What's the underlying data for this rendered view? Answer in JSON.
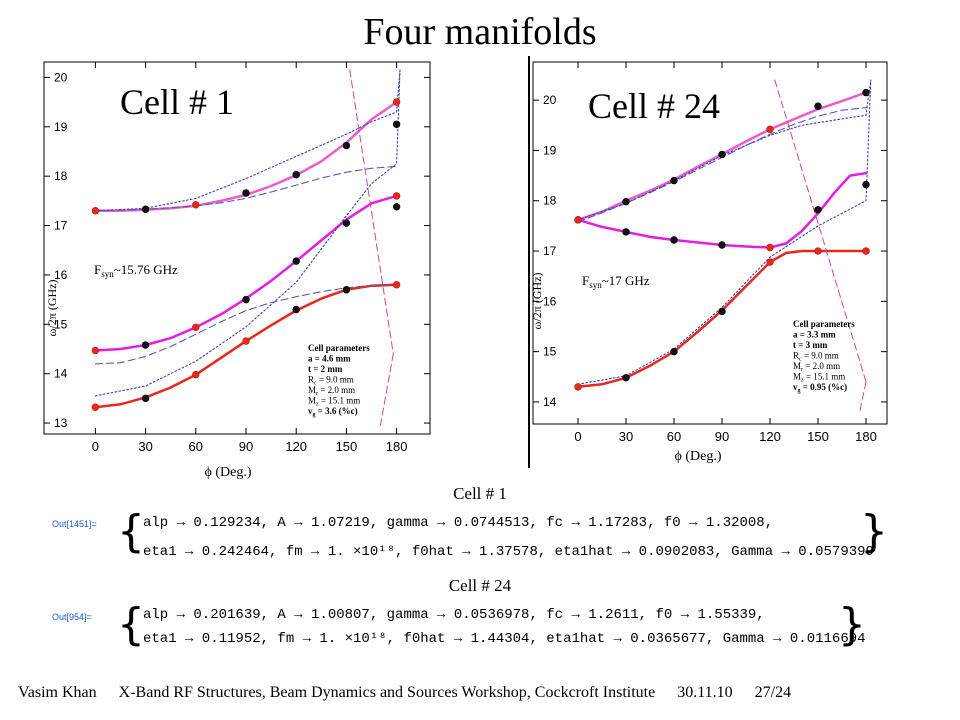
{
  "title": "Four manifolds",
  "labels": {
    "cell1_caption": "Cell # 1",
    "cell24_caption": "Cell # 24",
    "out1": "Out[1451]=",
    "out2": "Out[954]="
  },
  "fits": {
    "cell1": {
      "line1": "alp → 0.129234, A → 1.07219, gamma → 0.0744513, fc → 1.17283, f0 → 1.32008,",
      "line2": "eta1 → 0.242464, fm → 1. ×10¹⁸, f0hat → 1.37578, eta1hat → 0.0902083, Gamma → 0.0579399"
    },
    "cell24": {
      "line1": "alp → 0.201639, A → 1.00807, gamma → 0.0536978, fc → 1.2611, f0 → 1.55339,",
      "line2": "eta1 → 0.11952, fm → 1. ×10¹⁸, f0hat → 1.44304, eta1hat → 0.0365677, Gamma → 0.0116694"
    }
  },
  "footer": {
    "author": "Vasim Khan",
    "event": "X-Band RF Structures, Beam Dynamics and Sources Workshop, Cockcroft Institute",
    "date": "30.11.10",
    "page": "27/24"
  },
  "colors": {
    "red": "#e8281c",
    "magenta": "#e31ee3",
    "pink": "#ee5cc8",
    "dashed_blue": "#5a5ab4",
    "dotted_blue": "#3c3cc8",
    "light_line": "#d7428c",
    "dark_point": "#111111"
  },
  "chart_data": [
    {
      "type": "line",
      "panel_title": "Cell # 1",
      "fsyn_label": "F",
      "fsyn_sub": "syn",
      "fsyn_value": "~15.76 GHz",
      "xlabel": "ϕ (Deg.)",
      "ylabel": "ω/2π (GHz)",
      "xlim": [
        -5,
        185
      ],
      "ylim": [
        12.9,
        20.15
      ],
      "xticks": [
        0,
        30,
        60,
        90,
        120,
        150,
        180
      ],
      "yticks": [
        13,
        14,
        15,
        16,
        17,
        18,
        19,
        20
      ],
      "params": [
        "Cell parameters",
        "a = 4.6 mm",
        "t = 2 mm",
        "R",
        "c",
        " = 9.0 mm",
        "M",
        "r",
        " = 2.0 mm",
        "M",
        "z",
        " = 15.1 mm",
        "v",
        "g",
        " = 3.6 (%c)"
      ],
      "params_lines": [
        {
          "t": "Cell parameters",
          "bold": true
        },
        {
          "t": "a = 4.6 mm",
          "bold": true
        },
        {
          "t": "t = 2 mm",
          "bold": true
        },
        {
          "t": "R",
          "s": "c",
          "r": " = 9.0 mm"
        },
        {
          "t": "M",
          "s": "r",
          "r": " = 2.0 mm"
        },
        {
          "t": "M",
          "s": "z",
          "r": " = 15.1 mm"
        },
        {
          "t": "v",
          "s": "g",
          "r": " = 3.6 (%c)",
          "bold": true
        }
      ],
      "curves": [
        {
          "color": "red",
          "style": "solid",
          "width": 2.5,
          "x": [
            0,
            15,
            30,
            45,
            60,
            75,
            90,
            105,
            120,
            135,
            150,
            165,
            180
          ],
          "y": [
            13.32,
            13.38,
            13.52,
            13.72,
            13.98,
            14.32,
            14.66,
            14.98,
            15.28,
            15.52,
            15.7,
            15.78,
            15.8
          ]
        },
        {
          "color": "magenta",
          "style": "solid",
          "width": 2.5,
          "x": [
            0,
            15,
            30,
            45,
            60,
            75,
            90,
            105,
            120,
            135,
            150,
            165,
            180
          ],
          "y": [
            14.47,
            14.5,
            14.58,
            14.72,
            14.94,
            15.2,
            15.52,
            15.88,
            16.28,
            16.7,
            17.12,
            17.45,
            17.6
          ]
        },
        {
          "color": "pink",
          "style": "solid",
          "width": 2.5,
          "x": [
            0,
            15,
            30,
            45,
            60,
            75,
            90,
            105,
            120,
            135,
            150,
            165,
            180
          ],
          "y": [
            17.3,
            17.3,
            17.32,
            17.35,
            17.4,
            17.5,
            17.62,
            17.8,
            18.02,
            18.3,
            18.68,
            19.15,
            19.5
          ]
        },
        {
          "color": "dashed_blue",
          "style": "dashed",
          "width": 1.1,
          "x": [
            0,
            15,
            30,
            45,
            60,
            75,
            90,
            105,
            120,
            135,
            150,
            165,
            180
          ],
          "y": [
            14.2,
            14.22,
            14.35,
            14.55,
            14.8,
            15.05,
            15.28,
            15.44,
            15.56,
            15.66,
            15.74,
            15.79,
            15.82
          ]
        },
        {
          "color": "dashed_blue",
          "style": "dashed",
          "width": 1.1,
          "x": [
            0,
            15,
            30,
            45,
            60,
            75,
            90,
            105,
            120,
            135,
            150,
            165,
            180
          ],
          "y": [
            17.3,
            17.31,
            17.33,
            17.36,
            17.4,
            17.46,
            17.55,
            17.68,
            17.82,
            17.96,
            18.08,
            18.16,
            18.2
          ]
        },
        {
          "color": "dotted_blue",
          "style": "dotted",
          "width": 1.1,
          "x": [
            0,
            30,
            60,
            90,
            120,
            150,
            165,
            180,
            182
          ],
          "y": [
            13.55,
            13.75,
            14.25,
            14.95,
            15.85,
            17.2,
            17.85,
            18.25,
            20.15
          ]
        },
        {
          "color": "dotted_blue",
          "style": "dotted",
          "width": 1.1,
          "x": [
            0,
            30,
            60,
            90,
            120,
            150,
            165,
            180,
            182
          ],
          "y": [
            17.3,
            17.35,
            17.55,
            17.95,
            18.4,
            18.85,
            19.1,
            19.3,
            20.15
          ]
        },
        {
          "color": "light_line",
          "style": "dashed",
          "width": 1.0,
          "x": [
            152,
            178
          ],
          "y": [
            20.15,
            14.4
          ]
        },
        {
          "color": "light_line",
          "style": "dashed",
          "width": 1.0,
          "x": [
            178,
            170
          ],
          "y": [
            14.4,
            12.9
          ]
        }
      ],
      "points": [
        {
          "color": "red",
          "x": [
            0,
            60,
            90,
            180
          ],
          "y": [
            13.32,
            13.98,
            14.66,
            15.8
          ]
        },
        {
          "color": "red",
          "x": [
            0,
            60,
            180
          ],
          "y": [
            14.47,
            14.94,
            17.6
          ]
        },
        {
          "color": "red",
          "x": [
            0,
            60,
            120,
            180
          ],
          "y": [
            17.3,
            17.42,
            18.03,
            19.5
          ]
        },
        {
          "color": "dark_point",
          "x": [
            30,
            120,
            150
          ],
          "y": [
            13.5,
            15.3,
            15.7
          ]
        },
        {
          "color": "dark_point",
          "x": [
            30,
            90,
            120,
            150,
            180
          ],
          "y": [
            14.58,
            15.5,
            16.28,
            17.05,
            17.38
          ]
        },
        {
          "color": "dark_point",
          "x": [
            30,
            90,
            120,
            150,
            180
          ],
          "y": [
            17.33,
            17.66,
            18.03,
            18.62,
            19.05
          ]
        }
      ]
    },
    {
      "type": "line",
      "panel_title": "Cell # 24",
      "fsyn_label": "F",
      "fsyn_sub": "syn",
      "fsyn_value": "~17 GHz",
      "xlabel": "ϕ (Deg.)",
      "ylabel": "ω/2π (GHz)",
      "xlim": [
        -5,
        185
      ],
      "ylim": [
        13.8,
        20.4
      ],
      "xticks": [
        0,
        30,
        60,
        90,
        120,
        150,
        180
      ],
      "yticks": [
        14,
        15,
        16,
        17,
        18,
        19,
        20
      ],
      "params_lines": [
        {
          "t": "Cell parameters",
          "bold": true
        },
        {
          "t": "a = 3.3 mm",
          "bold": true
        },
        {
          "t": "t = 3 mm",
          "bold": true
        },
        {
          "t": "R",
          "s": "c",
          "r": " = 9.0 mm"
        },
        {
          "t": "M",
          "s": "r",
          "r": " = 2.0 mm"
        },
        {
          "t": "M",
          "s": "z",
          "r": " = 15.1 mm"
        },
        {
          "t": "v",
          "s": "g",
          "r": " = 0.95 (%c)",
          "bold": true
        }
      ],
      "curves": [
        {
          "color": "red",
          "style": "solid",
          "width": 2.5,
          "x": [
            0,
            15,
            30,
            45,
            60,
            75,
            90,
            105,
            120,
            130,
            140,
            150,
            165,
            180
          ],
          "y": [
            14.3,
            14.35,
            14.48,
            14.72,
            15.0,
            15.4,
            15.82,
            16.3,
            16.78,
            16.96,
            17.0,
            17.0,
            17.0,
            17.0
          ]
        },
        {
          "color": "magenta",
          "style": "solid",
          "width": 2.5,
          "x": [
            0,
            15,
            30,
            45,
            60,
            75,
            90,
            105,
            120,
            130,
            140,
            150,
            160,
            170,
            180
          ],
          "y": [
            17.62,
            17.48,
            17.38,
            17.28,
            17.22,
            17.17,
            17.12,
            17.09,
            17.07,
            17.15,
            17.4,
            17.75,
            18.15,
            18.5,
            18.55
          ]
        },
        {
          "color": "pink",
          "style": "solid",
          "width": 2.5,
          "x": [
            0,
            15,
            30,
            45,
            60,
            75,
            90,
            105,
            120,
            135,
            150,
            165,
            180
          ],
          "y": [
            17.62,
            17.78,
            18.0,
            18.2,
            18.42,
            18.68,
            18.92,
            19.18,
            19.42,
            19.62,
            19.82,
            19.98,
            20.15
          ]
        },
        {
          "color": "dashed_blue",
          "style": "dashed",
          "width": 1.1,
          "x": [
            0,
            15,
            30,
            45,
            60,
            75,
            90,
            105,
            120,
            135,
            150,
            165,
            180
          ],
          "y": [
            17.58,
            17.76,
            17.95,
            18.16,
            18.38,
            18.62,
            18.86,
            19.1,
            19.32,
            19.52,
            19.68,
            19.8,
            19.85
          ]
        },
        {
          "color": "dotted_blue",
          "style": "dotted",
          "width": 1.1,
          "x": [
            0,
            30,
            60,
            90,
            120,
            150,
            180,
            183
          ],
          "y": [
            14.35,
            14.52,
            15.05,
            15.88,
            16.88,
            17.5,
            18.0,
            20.4
          ]
        },
        {
          "color": "dotted_blue",
          "style": "dotted",
          "width": 1.1,
          "x": [
            0,
            30,
            60,
            90,
            120,
            140,
            160,
            180,
            183
          ],
          "y": [
            17.62,
            17.95,
            18.4,
            18.9,
            19.3,
            19.5,
            19.6,
            19.7,
            20.4
          ]
        },
        {
          "color": "light_line",
          "style": "dashed",
          "width": 1.0,
          "x": [
            123,
            180
          ],
          "y": [
            20.4,
            14.4
          ]
        },
        {
          "color": "light_line",
          "style": "dashed",
          "width": 1.0,
          "x": [
            180,
            176
          ],
          "y": [
            14.4,
            13.8
          ]
        }
      ],
      "points": [
        {
          "color": "red",
          "x": [
            0,
            120,
            150,
            180
          ],
          "y": [
            14.3,
            16.78,
            17.0,
            17.0
          ]
        },
        {
          "color": "red",
          "x": [
            0,
            120,
            180
          ],
          "y": [
            17.62,
            17.07,
            17.0
          ]
        },
        {
          "color": "red",
          "x": [
            0,
            120
          ],
          "y": [
            17.62,
            19.42
          ]
        },
        {
          "color": "dark_point",
          "x": [
            30,
            60,
            90
          ],
          "y": [
            14.48,
            15.0,
            15.8
          ]
        },
        {
          "color": "dark_point",
          "x": [
            30,
            60,
            90,
            150,
            180
          ],
          "y": [
            17.38,
            17.22,
            17.12,
            17.82,
            18.32
          ]
        },
        {
          "color": "dark_point",
          "x": [
            30,
            60,
            90,
            150,
            180
          ],
          "y": [
            17.98,
            18.4,
            18.92,
            19.88,
            20.15
          ]
        }
      ]
    }
  ]
}
